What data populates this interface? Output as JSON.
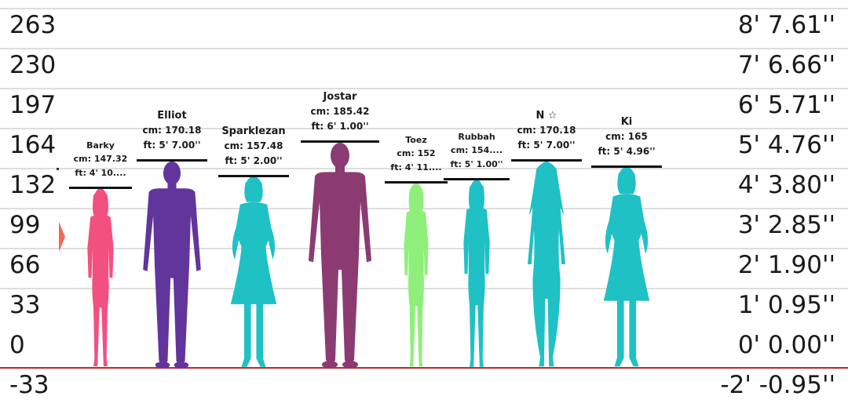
{
  "scale": {
    "left_ticks": [
      "263",
      "230",
      "197",
      "164",
      "132",
      "99",
      "66",
      "33",
      "0",
      "-33"
    ],
    "right_ticks": [
      "8' 7.61''",
      "7' 6.66''",
      "6' 5.71''",
      "5' 4.76''",
      "4' 3.80''",
      "3' 2.85''",
      "2' 1.90''",
      "1' 0.95''",
      "0' 0.00''",
      "-2' -0.95''"
    ]
  },
  "characters": [
    {
      "name": "Barky",
      "cm": "cm: 147.32",
      "ft": "ft: 4' 10....",
      "height_cm": 147.32,
      "color": "#f2507f",
      "body": "female-slim"
    },
    {
      "name": "Elliot",
      "cm": "cm: 170.18",
      "ft": "ft: 5' 7.00''",
      "height_cm": 170.18,
      "color": "#62359c",
      "body": "male"
    },
    {
      "name": "Sparklezan",
      "cm": "cm: 157.48",
      "ft": "ft: 5' 2.00''",
      "height_cm": 157.48,
      "color": "#1fc1c5",
      "body": "female-dress"
    },
    {
      "name": "Jostar",
      "cm": "cm: 185.42",
      "ft": "ft: 6' 1.00''",
      "height_cm": 185.42,
      "color": "#8b3b72",
      "body": "male-large"
    },
    {
      "name": "Toez",
      "cm": "cm: 152",
      "ft": "ft: 4' 11....",
      "height_cm": 152,
      "color": "#8ef07a",
      "body": "female-slim"
    },
    {
      "name": "Rubbah",
      "cm": "cm: 154....",
      "ft": "ft: 5' 1.00''",
      "height_cm": 154.94,
      "color": "#1fc1c5",
      "body": "female-slim"
    },
    {
      "name": "N ☆",
      "cm": "cm: 170.18",
      "ft": "ft: 5' 7.00''",
      "height_cm": 170.18,
      "color": "#1fc1c5",
      "body": "female-long"
    },
    {
      "name": "Ki",
      "cm": "cm: 165",
      "ft": "ft: 5' 4.96''",
      "height_cm": 165,
      "color": "#1fc1c5",
      "body": "female-dress"
    }
  ],
  "colors": {
    "ground": "#c92b2b",
    "grid": "#dedede",
    "marker": "#f26a50"
  },
  "icons": {
    "marker": "triangle-marker-icon"
  }
}
